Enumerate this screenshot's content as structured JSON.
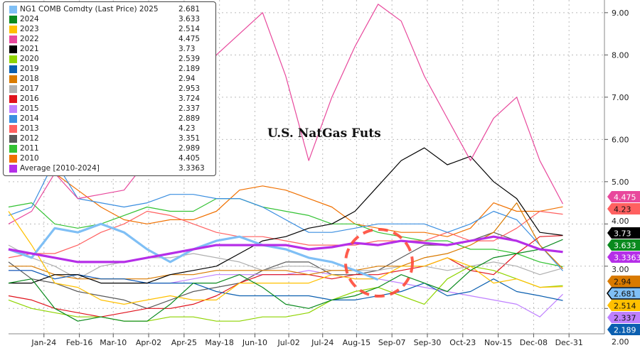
{
  "chart_data": {
    "type": "line",
    "title": "U.S. NatGas Futs",
    "xlabel": "",
    "ylabel": "",
    "xlim_days": [
      0,
      387
    ],
    "ylim": [
      1.4,
      9.3
    ],
    "grid": true,
    "legend_placement": "top-left",
    "x_days": [
      0,
      15,
      30,
      45,
      60,
      75,
      90,
      105,
      120,
      135,
      150,
      165,
      180,
      195,
      210,
      225,
      240,
      255,
      270,
      285,
      300,
      315,
      330,
      345,
      360
    ],
    "x_ticks": [
      {
        "day": 23,
        "label": "Jan-24"
      },
      {
        "day": 46,
        "label": "Feb-16"
      },
      {
        "day": 68,
        "label": "Mar-10"
      },
      {
        "day": 91,
        "label": "Apr-02"
      },
      {
        "day": 114,
        "label": "Apr-25"
      },
      {
        "day": 137,
        "label": "May-18"
      },
      {
        "day": 160,
        "label": "Jun-10"
      },
      {
        "day": 182,
        "label": "Jul-02"
      },
      {
        "day": 204,
        "label": "Jul-24"
      },
      {
        "day": 226,
        "label": "Aug-15"
      },
      {
        "day": 249,
        "label": "Sep-07"
      },
      {
        "day": 272,
        "label": "Sep-30"
      },
      {
        "day": 295,
        "label": "Oct-23"
      },
      {
        "day": 318,
        "label": "Nov-15"
      },
      {
        "day": 341,
        "label": "Dec-08"
      },
      {
        "day": 364,
        "label": "Dec-31"
      }
    ],
    "y_ticks": [
      {
        "value": 2,
        "label": "2.00"
      },
      {
        "value": 3,
        "label": "3.00"
      },
      {
        "value": 4,
        "label": "4.00"
      },
      {
        "value": 5,
        "label": "5.00"
      },
      {
        "value": 6,
        "label": "6.00"
      },
      {
        "value": 7,
        "label": "7.00"
      },
      {
        "value": 8,
        "label": "8.00"
      },
      {
        "value": 9,
        "label": "9.00"
      }
    ],
    "series": [
      {
        "name": "2010",
        "last": "4.405",
        "color": "#f07000",
        "values": [
          5.8,
          5.5,
          5.2,
          4.8,
          4.4,
          4.1,
          4.0,
          4.1,
          4.1,
          4.3,
          4.8,
          4.9,
          4.8,
          4.6,
          4.4,
          4.0,
          3.9,
          3.8,
          3.8,
          3.7,
          3.9,
          4.5,
          4.3,
          4.3,
          4.405
        ]
      },
      {
        "name": "2011",
        "last": "2.989",
        "color": "#33c233",
        "values": [
          4.4,
          4.5,
          4.0,
          3.9,
          4.0,
          4.2,
          4.4,
          4.3,
          4.3,
          4.6,
          4.6,
          4.4,
          4.3,
          4.2,
          4.0,
          4.0,
          3.8,
          3.7,
          3.6,
          3.6,
          3.4,
          3.4,
          3.3,
          3.1,
          2.989
        ]
      },
      {
        "name": "2012",
        "last": "3.351",
        "color": "#595959",
        "values": [
          3.1,
          2.7,
          2.6,
          2.4,
          2.3,
          2.2,
          2.0,
          2.2,
          2.4,
          2.5,
          2.6,
          2.9,
          3.1,
          3.1,
          2.8,
          2.8,
          2.9,
          3.2,
          3.5,
          3.5,
          3.6,
          3.8,
          3.6,
          3.4,
          3.351
        ]
      },
      {
        "name": "2013",
        "last": "4.23",
        "color": "#ff6060",
        "values": [
          3.2,
          3.3,
          3.3,
          3.5,
          3.8,
          4.0,
          4.3,
          4.2,
          4.0,
          3.8,
          3.7,
          3.7,
          3.6,
          3.5,
          3.5,
          3.5,
          3.6,
          3.6,
          3.6,
          3.8,
          3.6,
          3.6,
          3.9,
          4.3,
          4.23
        ]
      },
      {
        "name": "2014",
        "last": "2.889",
        "color": "#3a8ee0",
        "values": [
          4.2,
          4.4,
          5.5,
          4.6,
          4.5,
          4.4,
          4.5,
          4.7,
          4.7,
          4.6,
          4.6,
          4.4,
          4.1,
          3.8,
          3.8,
          3.9,
          4.0,
          4.0,
          4.0,
          3.8,
          4.0,
          4.3,
          4.1,
          3.5,
          2.889
        ]
      },
      {
        "name": "2015",
        "last": "2.337",
        "color": "#bf80ff",
        "values": [
          2.9,
          2.9,
          2.7,
          2.8,
          2.7,
          2.7,
          2.6,
          2.6,
          2.7,
          2.8,
          2.8,
          2.8,
          2.8,
          2.9,
          2.8,
          2.7,
          2.7,
          2.6,
          2.5,
          2.4,
          2.3,
          2.2,
          2.1,
          1.8,
          2.337
        ]
      },
      {
        "name": "2016",
        "last": "3.724",
        "color": "#e0121c",
        "values": [
          2.3,
          2.2,
          2.0,
          1.9,
          1.8,
          1.9,
          2.0,
          2.0,
          2.1,
          2.3,
          2.6,
          2.8,
          2.8,
          2.8,
          2.7,
          2.8,
          2.8,
          2.9,
          3.0,
          3.2,
          2.9,
          2.8,
          3.3,
          3.7,
          3.724
        ]
      },
      {
        "name": "2017",
        "last": "2.953",
        "color": "#b0b0b0",
        "values": [
          3.5,
          3.2,
          3.0,
          2.7,
          3.0,
          3.1,
          3.2,
          3.2,
          3.3,
          3.2,
          3.1,
          2.9,
          3.0,
          3.0,
          2.9,
          2.9,
          2.9,
          3.0,
          3.0,
          2.9,
          3.0,
          3.1,
          3.0,
          2.8,
          2.953
        ]
      },
      {
        "name": "2018",
        "last": "2.94",
        "color": "#d97a00",
        "values": [
          3.0,
          3.0,
          2.8,
          2.7,
          2.7,
          2.7,
          2.7,
          2.8,
          2.8,
          2.9,
          2.9,
          2.9,
          2.9,
          2.8,
          2.9,
          2.9,
          3.0,
          3.0,
          3.2,
          3.3,
          3.5,
          3.8,
          4.5,
          3.5,
          2.94
        ]
      },
      {
        "name": "2019",
        "last": "2.189",
        "color": "#0b5fb0",
        "values": [
          2.9,
          2.9,
          2.7,
          2.8,
          2.7,
          2.7,
          2.6,
          2.6,
          2.6,
          2.4,
          2.3,
          2.3,
          2.3,
          2.3,
          2.2,
          2.2,
          2.3,
          2.4,
          2.6,
          2.3,
          2.4,
          2.7,
          2.4,
          2.3,
          2.189
        ]
      },
      {
        "name": "2020",
        "last": "2.539",
        "color": "#8fd400",
        "values": [
          2.2,
          2.0,
          1.9,
          1.8,
          1.8,
          1.7,
          1.7,
          1.8,
          1.8,
          1.7,
          1.7,
          1.8,
          1.8,
          1.9,
          2.2,
          2.4,
          2.5,
          2.3,
          2.1,
          2.7,
          3.0,
          2.9,
          2.7,
          2.5,
          2.539
        ]
      },
      {
        "name": "2021",
        "last": "3.73",
        "color": "#000000",
        "values": [
          2.6,
          2.6,
          2.8,
          2.8,
          2.6,
          2.6,
          2.6,
          2.8,
          2.9,
          3.0,
          3.3,
          3.6,
          3.7,
          3.9,
          4.0,
          4.3,
          4.9,
          5.5,
          5.8,
          5.4,
          5.6,
          5.0,
          4.6,
          3.8,
          3.73
        ]
      },
      {
        "name": "2022",
        "last": "4.475",
        "color": "#e8489c",
        "values": [
          4.0,
          4.3,
          5.2,
          4.6,
          4.7,
          4.8,
          5.5,
          6.5,
          7.0,
          8.0,
          8.5,
          9.0,
          7.5,
          5.5,
          7.0,
          8.2,
          9.2,
          8.8,
          7.5,
          6.5,
          5.5,
          6.5,
          7.0,
          5.5,
          4.475
        ]
      },
      {
        "name": "2023",
        "last": "2.514",
        "color": "#ffc000",
        "values": [
          4.3,
          3.5,
          2.6,
          2.5,
          2.2,
          2.1,
          2.2,
          2.3,
          2.2,
          2.2,
          2.6,
          2.6,
          2.6,
          2.6,
          2.8,
          2.7,
          2.7,
          3.0,
          3.0,
          3.2,
          3.0,
          2.6,
          2.7,
          2.5,
          2.514
        ]
      },
      {
        "name": "2024",
        "last": "3.633",
        "color": "#0a8a1e",
        "values": [
          2.6,
          2.7,
          2.0,
          1.7,
          1.8,
          1.7,
          1.7,
          2.1,
          2.6,
          2.6,
          2.8,
          2.5,
          2.1,
          2.0,
          2.2,
          2.3,
          2.5,
          2.8,
          2.6,
          2.4,
          2.9,
          3.2,
          3.3,
          3.4,
          3.633
        ]
      },
      {
        "name": "NG1 COMB Comdty (Last Price) 2025",
        "last": "2.681",
        "color": "#7fbff5",
        "values": [
          3.4,
          3.2,
          3.9,
          3.8,
          4.0,
          3.8,
          3.4,
          3.1,
          3.4,
          3.6,
          3.7,
          3.5,
          3.4,
          3.2,
          3.1,
          2.9,
          2.681
        ]
      },
      {
        "name": "Average  [2010-2024]",
        "last": "3.3363",
        "color": "#b52ee8",
        "values": [
          3.4,
          3.3,
          3.2,
          3.1,
          3.1,
          3.1,
          3.2,
          3.3,
          3.4,
          3.5,
          3.5,
          3.5,
          3.5,
          3.4,
          3.45,
          3.55,
          3.5,
          3.6,
          3.55,
          3.5,
          3.6,
          3.7,
          3.6,
          3.4,
          3.3363
        ]
      }
    ],
    "legend_order": [
      15,
      14,
      13,
      12,
      11,
      10,
      9,
      8,
      7,
      6,
      5,
      4,
      3,
      2,
      1,
      0,
      16
    ],
    "annotation": "red dashed circle around mid-August"
  }
}
